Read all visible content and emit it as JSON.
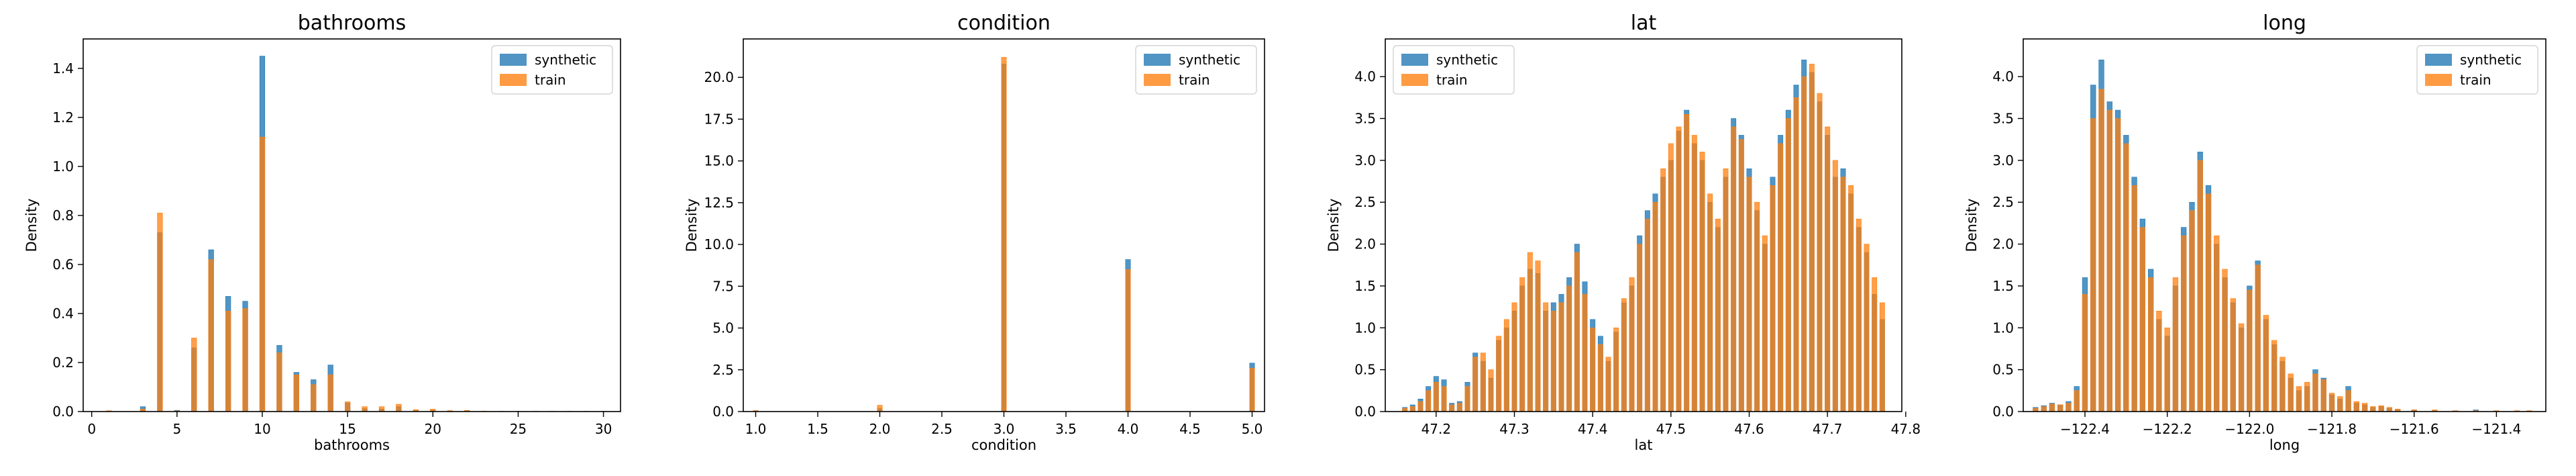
{
  "colors": {
    "synthetic": "#1f77b4",
    "train": "#ff7f0e"
  },
  "legend": {
    "synthetic": "synthetic",
    "train": "train",
    "placement": "upper right"
  },
  "chart_data": [
    {
      "type": "histogram",
      "title": "bathrooms",
      "xlabel": "bathrooms",
      "ylabel": "Density",
      "xlim": [
        -0.5,
        31.0
      ],
      "ylim": [
        0,
        1.52
      ],
      "xticks": [
        0,
        5,
        10,
        15,
        20,
        25,
        30
      ],
      "yticks": [
        0.0,
        0.2,
        0.4,
        0.6,
        0.8,
        1.0,
        1.2,
        1.4
      ],
      "bin_width": 0.3,
      "x": [
        1,
        3,
        4,
        5,
        6,
        7,
        8,
        9,
        10,
        11,
        12,
        13,
        14,
        15,
        16,
        17,
        18,
        19,
        20,
        21,
        22,
        23,
        24,
        25,
        26,
        27,
        28,
        29,
        30
      ],
      "series": [
        {
          "name": "synthetic",
          "values": [
            0.003,
            0.02,
            0.73,
            0.005,
            0.26,
            0.66,
            0.47,
            0.45,
            1.45,
            0.27,
            0.16,
            0.13,
            0.19,
            0.035,
            0.012,
            0.01,
            0.02,
            0.004,
            0.005,
            0.002,
            0.003,
            0.001,
            0.001,
            0.001,
            0.001,
            0.001,
            0.001,
            0.001,
            0.001
          ]
        },
        {
          "name": "train",
          "values": [
            0.003,
            0.01,
            0.81,
            0.003,
            0.3,
            0.62,
            0.41,
            0.42,
            1.12,
            0.24,
            0.15,
            0.11,
            0.15,
            0.04,
            0.02,
            0.02,
            0.03,
            0.008,
            0.01,
            0.004,
            0.005,
            0.002,
            0.001,
            0.001,
            0.001,
            0.001,
            0.001,
            0.001,
            0.001
          ]
        }
      ]
    },
    {
      "type": "histogram",
      "title": "condition",
      "xlabel": "condition",
      "ylabel": "Density",
      "xlim": [
        0.9,
        5.1
      ],
      "ylim": [
        0,
        22.3
      ],
      "xticks": [
        1.0,
        1.5,
        2.0,
        2.5,
        3.0,
        3.5,
        4.0,
        4.5,
        5.0
      ],
      "yticks": [
        0.0,
        2.5,
        5.0,
        7.5,
        10.0,
        12.5,
        15.0,
        17.5,
        20.0
      ],
      "bin_width": 0.04,
      "x": [
        1.0,
        2.0,
        3.0,
        4.0,
        5.0
      ],
      "series": [
        {
          "name": "synthetic",
          "values": [
            0.05,
            0.18,
            20.8,
            9.1,
            2.9
          ]
        },
        {
          "name": "train",
          "values": [
            0.06,
            0.38,
            21.2,
            8.5,
            2.6
          ]
        }
      ]
    },
    {
      "type": "histogram",
      "title": "lat",
      "xlabel": "lat",
      "ylabel": "Density",
      "xlim": [
        47.135,
        47.795
      ],
      "ylim": [
        0,
        4.45
      ],
      "xticks": [
        47.2,
        47.3,
        47.4,
        47.5,
        47.6,
        47.7,
        47.8
      ],
      "yticks": [
        0.0,
        0.5,
        1.0,
        1.5,
        2.0,
        2.5,
        3.0,
        3.5,
        4.0
      ],
      "bin_width": 0.00625,
      "x": [
        47.16,
        47.17,
        47.18,
        47.19,
        47.2,
        47.21,
        47.22,
        47.23,
        47.24,
        47.25,
        47.26,
        47.27,
        47.28,
        47.29,
        47.3,
        47.31,
        47.32,
        47.33,
        47.34,
        47.35,
        47.36,
        47.37,
        47.38,
        47.39,
        47.4,
        47.41,
        47.42,
        47.43,
        47.44,
        47.45,
        47.46,
        47.47,
        47.48,
        47.49,
        47.5,
        47.51,
        47.52,
        47.53,
        47.54,
        47.55,
        47.56,
        47.57,
        47.58,
        47.59,
        47.6,
        47.61,
        47.62,
        47.63,
        47.64,
        47.65,
        47.66,
        47.67,
        47.68,
        47.69,
        47.7,
        47.71,
        47.72,
        47.73,
        47.74,
        47.75,
        47.76,
        47.77
      ],
      "series": [
        {
          "name": "synthetic",
          "values": [
            0.05,
            0.08,
            0.15,
            0.3,
            0.42,
            0.38,
            0.1,
            0.12,
            0.35,
            0.7,
            0.6,
            0.4,
            0.85,
            1.0,
            1.2,
            1.5,
            1.7,
            1.65,
            1.2,
            1.3,
            1.4,
            1.6,
            2.0,
            1.55,
            1.1,
            0.9,
            0.6,
            0.95,
            1.3,
            1.5,
            2.1,
            2.4,
            2.6,
            2.8,
            3.0,
            3.35,
            3.6,
            3.2,
            3.0,
            2.5,
            2.2,
            2.8,
            3.5,
            3.3,
            2.9,
            2.4,
            2.0,
            2.8,
            3.3,
            3.6,
            3.9,
            4.2,
            4.05,
            3.7,
            3.3,
            2.8,
            2.9,
            2.6,
            2.2,
            1.9,
            1.4,
            1.1
          ]
        },
        {
          "name": "train",
          "values": [
            0.04,
            0.06,
            0.12,
            0.25,
            0.35,
            0.3,
            0.08,
            0.1,
            0.3,
            0.65,
            0.7,
            0.5,
            0.9,
            1.1,
            1.3,
            1.6,
            1.9,
            1.8,
            1.3,
            1.2,
            1.3,
            1.5,
            1.9,
            1.4,
            1.0,
            0.8,
            0.65,
            1.0,
            1.35,
            1.6,
            2.0,
            2.3,
            2.5,
            2.9,
            3.2,
            3.4,
            3.55,
            3.3,
            3.1,
            2.6,
            2.3,
            2.9,
            3.4,
            3.25,
            2.8,
            2.5,
            2.1,
            2.7,
            3.2,
            3.5,
            3.75,
            4.0,
            4.15,
            3.8,
            3.4,
            3.0,
            2.8,
            2.7,
            2.3,
            2.0,
            1.6,
            1.3
          ]
        }
      ]
    },
    {
      "type": "histogram",
      "title": "long",
      "xlabel": "long",
      "ylabel": "Density",
      "xlim": [
        -122.55,
        -121.28
      ],
      "ylim": [
        0,
        4.45
      ],
      "xticks": [
        -122.4,
        -122.2,
        -122.0,
        -121.8,
        -121.6,
        -121.4
      ],
      "xticklabels": [
        "−122.4",
        "−122.2",
        "−122.0",
        "−121.8",
        "−121.6",
        "−121.4"
      ],
      "yticks": [
        0.0,
        0.5,
        1.0,
        1.5,
        2.0,
        2.5,
        3.0,
        3.5,
        4.0
      ],
      "bin_width": 0.0125,
      "x": [
        -122.52,
        -122.5,
        -122.48,
        -122.46,
        -122.44,
        -122.42,
        -122.4,
        -122.38,
        -122.36,
        -122.34,
        -122.32,
        -122.3,
        -122.28,
        -122.26,
        -122.24,
        -122.22,
        -122.2,
        -122.18,
        -122.16,
        -122.14,
        -122.12,
        -122.1,
        -122.08,
        -122.06,
        -122.04,
        -122.02,
        -122.0,
        -121.98,
        -121.96,
        -121.94,
        -121.92,
        -121.9,
        -121.88,
        -121.86,
        -121.84,
        -121.82,
        -121.8,
        -121.78,
        -121.76,
        -121.74,
        -121.72,
        -121.7,
        -121.68,
        -121.66,
        -121.64,
        -121.6,
        -121.55,
        -121.5,
        -121.45,
        -121.4,
        -121.35,
        -121.32
      ],
      "series": [
        {
          "name": "synthetic",
          "values": [
            0.05,
            0.07,
            0.1,
            0.08,
            0.12,
            0.3,
            1.6,
            3.9,
            4.2,
            3.7,
            3.6,
            3.3,
            2.8,
            2.3,
            1.7,
            1.1,
            0.9,
            1.5,
            2.2,
            2.5,
            3.1,
            2.7,
            2.0,
            1.6,
            1.3,
            1.0,
            1.5,
            1.8,
            1.1,
            0.8,
            0.6,
            0.4,
            0.25,
            0.3,
            0.5,
            0.4,
            0.2,
            0.15,
            0.3,
            0.1,
            0.08,
            0.05,
            0.06,
            0.04,
            0.02,
            0.02,
            0.01,
            0.01,
            0.02,
            0.01,
            0.01,
            0.01
          ]
        },
        {
          "name": "train",
          "values": [
            0.04,
            0.06,
            0.09,
            0.08,
            0.1,
            0.25,
            1.4,
            3.5,
            3.85,
            3.6,
            3.5,
            3.2,
            2.7,
            2.2,
            1.6,
            1.2,
            1.0,
            1.6,
            2.1,
            2.4,
            3.0,
            2.6,
            2.1,
            1.7,
            1.35,
            1.05,
            1.45,
            1.75,
            1.15,
            0.85,
            0.65,
            0.45,
            0.3,
            0.35,
            0.45,
            0.38,
            0.22,
            0.18,
            0.25,
            0.12,
            0.1,
            0.06,
            0.07,
            0.05,
            0.03,
            0.02,
            0.02,
            0.01,
            0.01,
            0.01,
            0.01,
            0.01
          ]
        }
      ]
    }
  ]
}
